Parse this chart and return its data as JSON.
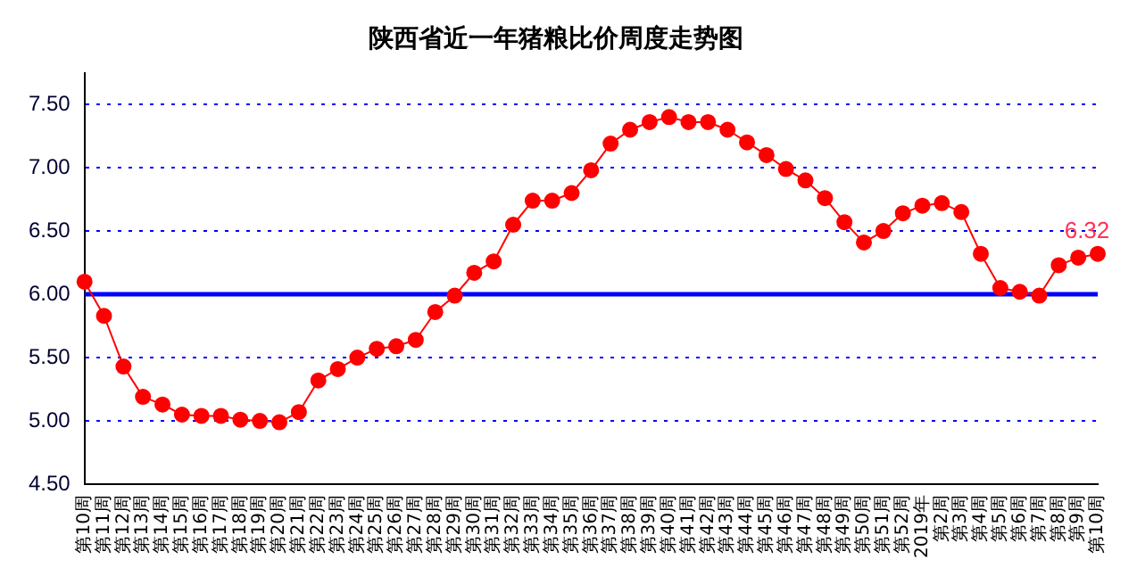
{
  "chart_data": {
    "type": "line",
    "title": "陕西省近一年猪粮比价周度走势图",
    "categories": [
      "第10周",
      "第11周",
      "第12周",
      "第13周",
      "第14周",
      "第15周",
      "第16周",
      "第17周",
      "第18周",
      "第19周",
      "第20周",
      "第21周",
      "第22周",
      "第23周",
      "第24周",
      "第25周",
      "第26周",
      "第27周",
      "第28周",
      "第29周",
      "第30周",
      "第31周",
      "第32周",
      "第33周",
      "第34周",
      "第35周",
      "第36周",
      "第37周",
      "第38周",
      "第39周",
      "第40周",
      "第41周",
      "第42周",
      "第43周",
      "第44周",
      "第45周",
      "第46周",
      "第47周",
      "第48周",
      "第49周",
      "第50周",
      "第51周",
      "第52周",
      "2019年",
      "第2周",
      "第3周",
      "第4周",
      "第5周",
      "第6周",
      "第7周",
      "第8周",
      "第9周",
      "第10周"
    ],
    "series": [
      {
        "color": "#ff0000",
        "values": [
          6.1,
          5.83,
          5.43,
          5.19,
          5.13,
          5.05,
          5.04,
          5.04,
          5.01,
          5.0,
          4.99,
          5.07,
          5.32,
          5.41,
          5.5,
          5.57,
          5.59,
          5.64,
          5.86,
          5.99,
          6.17,
          6.26,
          6.55,
          6.74,
          6.74,
          6.8,
          6.98,
          7.19,
          7.3,
          7.36,
          7.4,
          7.36,
          7.36,
          7.3,
          7.2,
          7.1,
          6.99,
          6.9,
          6.76,
          6.57,
          6.41,
          6.5,
          6.64,
          6.7,
          6.72,
          6.65,
          6.32,
          6.05,
          6.02,
          5.99,
          6.23,
          6.29,
          6.32
        ],
        "value_labels": [
          null,
          null,
          null,
          null,
          null,
          null,
          null,
          null,
          null,
          null,
          null,
          null,
          null,
          null,
          null,
          null,
          null,
          null,
          null,
          null,
          null,
          null,
          null,
          null,
          null,
          null,
          null,
          null,
          null,
          null,
          null,
          null,
          null,
          null,
          null,
          null,
          null,
          null,
          null,
          null,
          null,
          null,
          null,
          null,
          null,
          null,
          null,
          null,
          null,
          null,
          null,
          null,
          "6.32"
        ]
      }
    ],
    "ylim": [
      4.5,
      7.75
    ],
    "yticks": [
      {
        "value": 4.5,
        "label": "4.50"
      },
      {
        "value": 5,
        "label": "5.00"
      },
      {
        "value": 5.5,
        "label": "5.50"
      },
      {
        "value": 6,
        "label": "6.00"
      },
      {
        "value": 6.5,
        "label": "6.50"
      },
      {
        "value": 7,
        "label": "7.00"
      },
      {
        "value": 7.5,
        "label": "7.50"
      }
    ],
    "grid": "y",
    "marker": "circle",
    "line_style": "solid",
    "legend": false,
    "ref_lines": [
      {
        "axis": "y",
        "value": 6,
        "color": "#0000ff",
        "line_style": "solid"
      }
    ]
  }
}
